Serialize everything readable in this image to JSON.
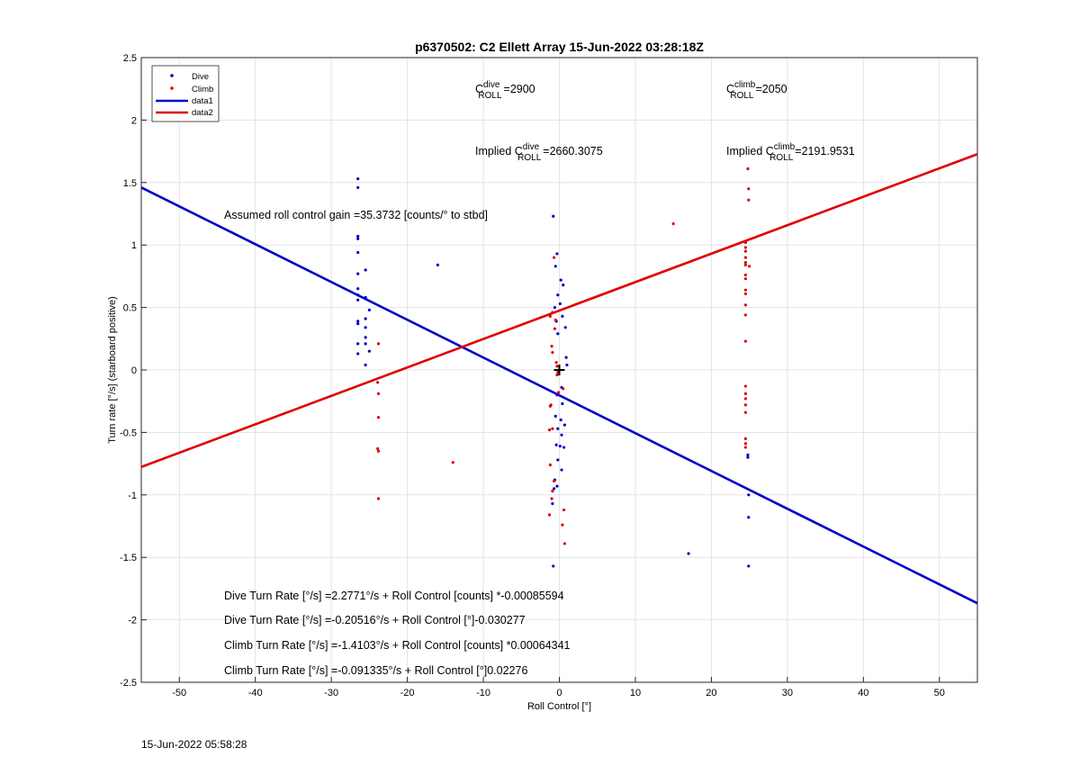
{
  "timestamp": "15-Jun-2022 05:58:28",
  "chart_data": {
    "type": "scatter",
    "title": "p6370502: C2 Ellett Array 15-Jun-2022 03:28:18Z",
    "xlabel": "Roll Control [°]",
    "ylabel": "Turn rate [°/s] (starboard positive)",
    "xlim": [
      -55,
      55
    ],
    "ylim": [
      -2.5,
      2.5
    ],
    "xticks": [
      -50,
      -40,
      -30,
      -20,
      -10,
      0,
      10,
      20,
      30,
      40,
      50
    ],
    "yticks": [
      -2.5,
      -2,
      -1.5,
      -1,
      -0.5,
      0,
      0.5,
      1,
      1.5,
      2,
      2.5
    ],
    "grid": true,
    "legend_position": "top-left",
    "legend": [
      "Dive",
      "Climb",
      "data1",
      "data2"
    ],
    "colors": {
      "dive": "#0000c8",
      "climb": "#e00000",
      "data1": "#0000c8",
      "data2": "#dd0000"
    },
    "series": [
      {
        "name": "Dive",
        "marker": "dot",
        "points": [
          [
            -26.5,
            1.53
          ],
          [
            -26.5,
            1.46
          ],
          [
            -26.5,
            1.07
          ],
          [
            -26.5,
            1.05
          ],
          [
            -26.5,
            0.94
          ],
          [
            -26.5,
            0.77
          ],
          [
            -26.5,
            0.65
          ],
          [
            -26.5,
            0.6
          ],
          [
            -26.5,
            0.56
          ],
          [
            -26.5,
            0.39
          ],
          [
            -26.5,
            0.37
          ],
          [
            -26.5,
            0.21
          ],
          [
            -26.5,
            0.13
          ],
          [
            -25.5,
            0.8
          ],
          [
            -25.5,
            0.58
          ],
          [
            -25.5,
            0.41
          ],
          [
            -25.5,
            0.34
          ],
          [
            -25.5,
            0.26
          ],
          [
            -25.5,
            0.21
          ],
          [
            -25.5,
            0.04
          ],
          [
            -25,
            0.48
          ],
          [
            -25,
            0.15
          ],
          [
            -16,
            0.84
          ],
          [
            -0.8,
            1.23
          ],
          [
            -0.3,
            0.93
          ],
          [
            -0.5,
            0.83
          ],
          [
            0.2,
            0.72
          ],
          [
            0.5,
            0.68
          ],
          [
            -0.2,
            0.6
          ],
          [
            0.1,
            0.53
          ],
          [
            -0.6,
            0.5
          ],
          [
            0.4,
            0.43
          ],
          [
            -0.4,
            0.39
          ],
          [
            0.8,
            0.34
          ],
          [
            -0.2,
            0.29
          ],
          [
            0.9,
            0.1
          ],
          [
            1.0,
            0.04
          ],
          [
            -0.1,
            -0.01
          ],
          [
            0.3,
            -0.14
          ],
          [
            -0.3,
            -0.2
          ],
          [
            0.4,
            -0.27
          ],
          [
            -0.5,
            -0.37
          ],
          [
            0.2,
            -0.4
          ],
          [
            -0.2,
            -0.47
          ],
          [
            0.7,
            -0.44
          ],
          [
            0.3,
            -0.52
          ],
          [
            -0.4,
            -0.6
          ],
          [
            0.1,
            -0.61
          ],
          [
            0.6,
            -0.62
          ],
          [
            -0.2,
            -0.72
          ],
          [
            0.3,
            -0.8
          ],
          [
            -0.6,
            -0.88
          ],
          [
            -0.3,
            -0.93
          ],
          [
            -0.7,
            -0.95
          ],
          [
            -0.9,
            -1.07
          ],
          [
            -0.8,
            -1.57
          ],
          [
            17,
            -1.47
          ],
          [
            24.8,
            -0.68
          ],
          [
            24.8,
            -0.7
          ],
          [
            24.9,
            -1.0
          ],
          [
            24.9,
            -1.18
          ],
          [
            24.9,
            -1.57
          ]
        ]
      },
      {
        "name": "Climb",
        "marker": "dot",
        "points": [
          [
            24.8,
            1.61
          ],
          [
            24.9,
            1.45
          ],
          [
            24.9,
            1.36
          ],
          [
            24.5,
            1.02
          ],
          [
            24.5,
            0.98
          ],
          [
            24.5,
            0.95
          ],
          [
            24.5,
            0.9
          ],
          [
            24.5,
            0.86
          ],
          [
            24.5,
            0.84
          ],
          [
            25,
            0.83
          ],
          [
            24.5,
            0.76
          ],
          [
            24.5,
            0.73
          ],
          [
            24.5,
            0.64
          ],
          [
            24.5,
            0.61
          ],
          [
            24.5,
            0.52
          ],
          [
            24.5,
            0.44
          ],
          [
            24.5,
            0.23
          ],
          [
            24.5,
            -0.13
          ],
          [
            24.5,
            -0.19
          ],
          [
            24.5,
            -0.23
          ],
          [
            24.5,
            -0.28
          ],
          [
            24.5,
            -0.34
          ],
          [
            24.5,
            -0.55
          ],
          [
            24.5,
            -0.59
          ],
          [
            24.5,
            -0.62
          ],
          [
            15,
            1.17
          ],
          [
            -0.7,
            0.9
          ],
          [
            -0.9,
            0.46
          ],
          [
            -1.2,
            0.43
          ],
          [
            -0.5,
            0.4
          ],
          [
            -0.6,
            0.33
          ],
          [
            -1.0,
            0.19
          ],
          [
            -0.9,
            0.14
          ],
          [
            -0.4,
            0.06
          ],
          [
            -0.3,
            0.03
          ],
          [
            -0.2,
            -0.02
          ],
          [
            -0.3,
            -0.04
          ],
          [
            0.5,
            -0.15
          ],
          [
            -0.1,
            -0.18
          ],
          [
            -1.1,
            -0.28
          ],
          [
            -1.2,
            -0.29
          ],
          [
            -0.9,
            -0.47
          ],
          [
            -1.3,
            -0.48
          ],
          [
            -1.2,
            -0.76
          ],
          [
            -0.7,
            -0.89
          ],
          [
            -0.9,
            -0.97
          ],
          [
            -1.0,
            -1.03
          ],
          [
            -1.3,
            -1.16
          ],
          [
            0.6,
            -1.12
          ],
          [
            0.4,
            -1.24
          ],
          [
            0.7,
            -1.39
          ],
          [
            -23.8,
            0.21
          ],
          [
            -23.9,
            -0.1
          ],
          [
            -23.8,
            -0.19
          ],
          [
            -23.8,
            -0.38
          ],
          [
            -23.9,
            -0.63
          ],
          [
            -23.8,
            -0.65
          ],
          [
            -23.8,
            -1.03
          ],
          [
            -14,
            -0.74
          ]
        ]
      },
      {
        "name": "data1",
        "type": "line",
        "x": [
          -55,
          55
        ],
        "y": [
          1.4605,
          -1.8675
        ]
      },
      {
        "name": "data2",
        "type": "line",
        "x": [
          -55,
          55
        ],
        "y": [
          -0.7765,
          1.7275
        ]
      }
    ],
    "center_marker": [
      0,
      0
    ],
    "annotations": {
      "c_dive": {
        "prefix": "C",
        "sup": "dive",
        "sub": "ROLL",
        "value": "=2900"
      },
      "c_climb": {
        "prefix": "C",
        "sup": "climb",
        "sub": "ROLL",
        "value": "=2050"
      },
      "implied_dive": {
        "prefix": "Implied C",
        "sup": "dive",
        "sub": "ROLL",
        "value": "=2660.3075"
      },
      "implied_climb": {
        "prefix": "Implied C",
        "sup": "climb",
        "sub": "ROLL",
        "value": "=2191.9531"
      },
      "gain": "Assumed roll control gain =35.3732 [counts/° to stbd]",
      "eq1": "Dive Turn Rate [°/s] =2.2771°/s + Roll Control [counts] *-0.00085594",
      "eq2": "Dive Turn Rate [°/s] =-0.20516°/s + Roll Control [°]-0.030277",
      "eq3": "Climb Turn Rate [°/s] =-1.4103°/s + Roll Control [counts] *0.00064341",
      "eq4": "Climb Turn Rate [°/s] =-0.091335°/s + Roll Control [°]0.02276"
    }
  }
}
